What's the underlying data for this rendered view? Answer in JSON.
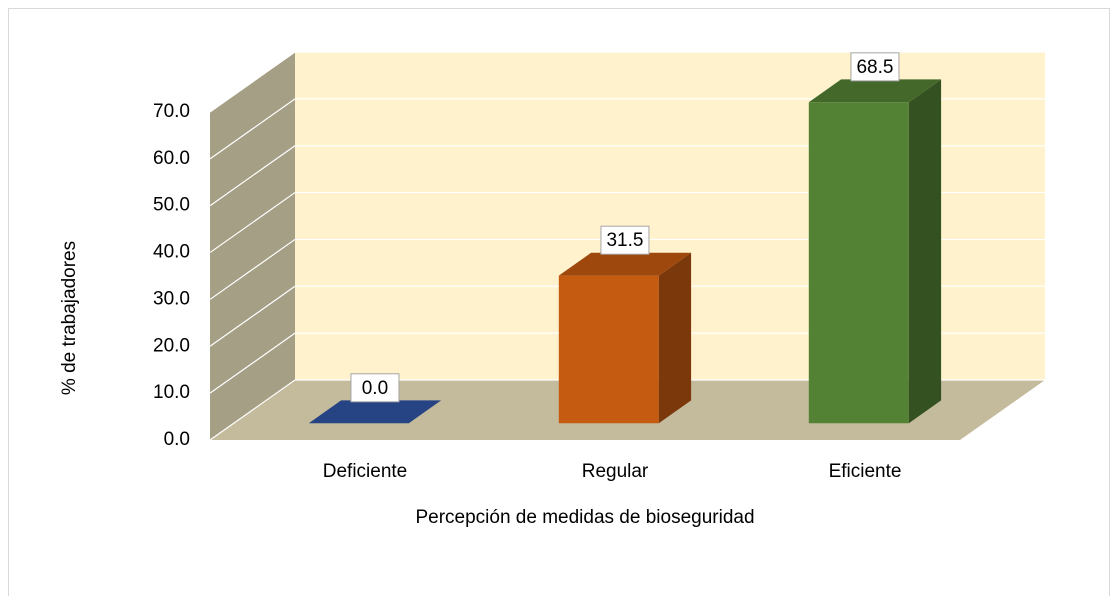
{
  "chart_data": {
    "type": "bar3d",
    "y_label": "% de trabajadores",
    "x_label": "Percepción de medidas de bioseguridad",
    "categories": [
      "Deficiente",
      "Regular",
      "Eficiente"
    ],
    "values": [
      0,
      31.5,
      68.5
    ],
    "value_labels": [
      "0.0",
      "31.5",
      "68.5"
    ],
    "colors": [
      "#2f55a4",
      "#c55a11",
      "#548235"
    ],
    "ylim": [
      0,
      70
    ],
    "yticks": [
      {
        "value": 0,
        "label": "0.0"
      },
      {
        "value": 10,
        "label": "10.0"
      },
      {
        "value": 20,
        "label": "20.0"
      },
      {
        "value": 30,
        "label": "30.0"
      },
      {
        "value": 40,
        "label": "40.0"
      },
      {
        "value": 50,
        "label": "50.0"
      },
      {
        "value": 60,
        "label": "60.0"
      },
      {
        "value": 70,
        "label": "70.0"
      }
    ],
    "grid": true
  }
}
